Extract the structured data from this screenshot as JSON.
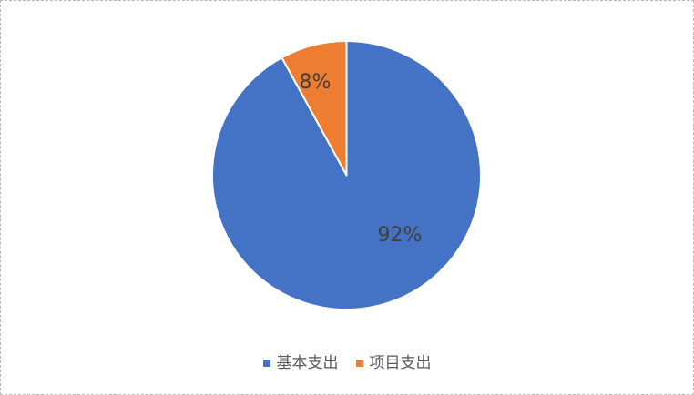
{
  "chart_data": {
    "type": "pie",
    "categories": [
      "基本支出",
      "项目支出"
    ],
    "values": [
      92,
      8
    ],
    "labels": [
      "92%",
      "8%"
    ],
    "colors": [
      "#4472C4",
      "#ED7D31"
    ],
    "legend_position": "bottom",
    "legend_entries": [
      "基本支出",
      "项目支出"
    ],
    "slice_border_color": "#ffffff"
  },
  "styles": {
    "background": "#ffffff",
    "frame_border_color": "#b5b5b5",
    "data_label_color": "#3f3f3f",
    "legend_text_color": "#595959"
  }
}
